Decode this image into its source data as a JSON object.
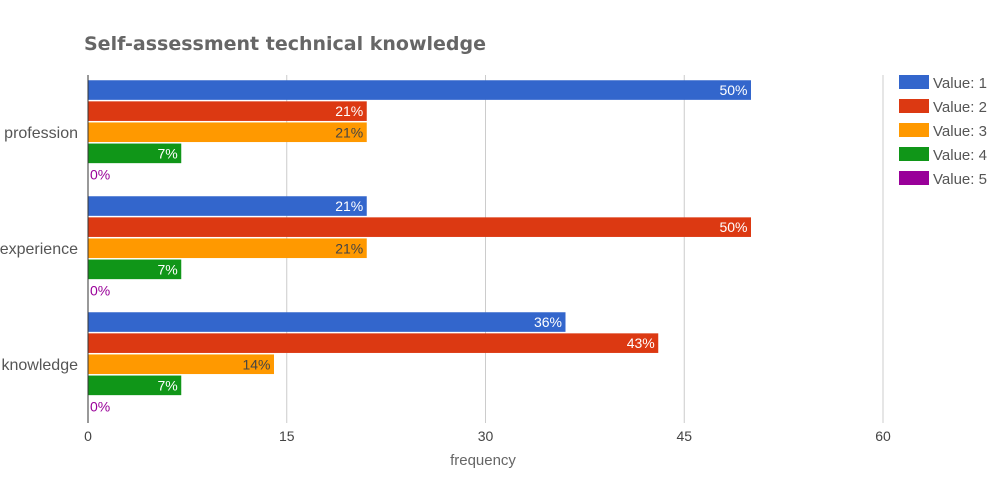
{
  "chart_data": {
    "type": "bar",
    "orientation": "horizontal",
    "title": "Self-assessment technical knowledge",
    "xlabel": "frequency",
    "ylabel": "",
    "xlim": [
      0,
      60
    ],
    "xticks": [
      0,
      15,
      30,
      45,
      60
    ],
    "grid": true,
    "legend_position": "top-right",
    "categories": [
      "profession",
      "experience",
      "knowledge"
    ],
    "series": [
      {
        "name": "Value: 1",
        "color": "#3366cc",
        "values": [
          50,
          21,
          36
        ],
        "labels": [
          "50%",
          "21%",
          "36%"
        ],
        "label_color": "#ffffff"
      },
      {
        "name": "Value: 2",
        "color": "#dc3912",
        "values": [
          21,
          50,
          43
        ],
        "labels": [
          "21%",
          "50%",
          "43%"
        ],
        "label_color": "#ffffff"
      },
      {
        "name": "Value: 3",
        "color": "#ff9900",
        "values": [
          21,
          21,
          14
        ],
        "labels": [
          "21%",
          "21%",
          "14%"
        ],
        "label_color": "#444444"
      },
      {
        "name": "Value: 4",
        "color": "#109618",
        "values": [
          7,
          7,
          7
        ],
        "labels": [
          "7%",
          "7%",
          "7%"
        ],
        "label_color": "#ffffff"
      },
      {
        "name": "Value: 5",
        "color": "#990099",
        "values": [
          0,
          0,
          0
        ],
        "labels": [
          "0%",
          "0%",
          "0%"
        ],
        "label_color": "#990099"
      }
    ]
  }
}
